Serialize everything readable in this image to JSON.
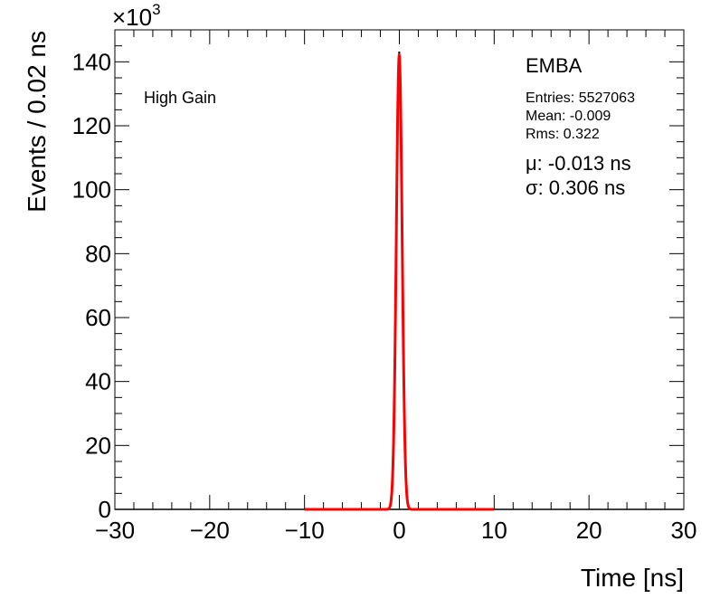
{
  "chart_data": {
    "type": "line",
    "xlabel": "Time [ns]",
    "ylabel": "Events / 0.02 ns",
    "xlim": [
      -30,
      30
    ],
    "ylim": [
      0,
      150
    ],
    "y_multiplier_label": "×10",
    "y_multiplier_exponent": "3",
    "x_ticks": [
      -30,
      -20,
      -10,
      0,
      10,
      20,
      30
    ],
    "x_tick_labels": [
      "−30",
      "−20",
      "−10",
      "0",
      "10",
      "20",
      "30"
    ],
    "y_ticks": [
      0,
      20,
      40,
      60,
      80,
      100,
      120,
      140
    ],
    "y_tick_labels": [
      "0",
      "20",
      "40",
      "60",
      "80",
      "100",
      "120",
      "140"
    ],
    "annotation": "High Gain",
    "stats": {
      "name": "EMBA",
      "entries": "Entries: 5527063",
      "mean": "Mean: -0.009",
      "rms": "Rms: 0.322"
    },
    "fit": {
      "mu_text": "μ: -0.013 ns",
      "sigma_text": "σ: 0.306 ns",
      "mu": -0.013,
      "sigma": 0.306,
      "peak": 142,
      "range": [
        -10,
        10
      ],
      "color": "#ff0000"
    },
    "histogram": {
      "color": "#000000",
      "peak": 143,
      "mean": -0.009,
      "sigma": 0.31
    },
    "grid": false,
    "legend": "none"
  }
}
